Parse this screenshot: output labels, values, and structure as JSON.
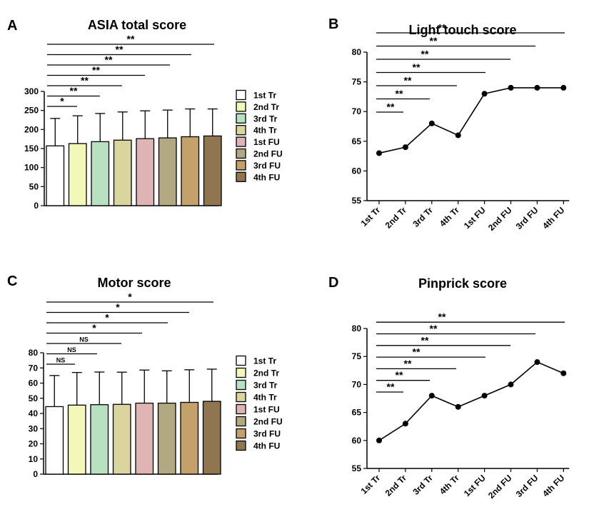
{
  "chart_data": [
    {
      "panel": "A",
      "type": "bar",
      "title": "ASIA total score",
      "categories": [
        "1st Tr",
        "2nd Tr",
        "3rd Tr",
        "4th Tr",
        "1st FU",
        "2nd FU",
        "3rd FU",
        "4th FU"
      ],
      "values": [
        157,
        163,
        168,
        172,
        176,
        178,
        181,
        183
      ],
      "errors": [
        72,
        73,
        74,
        74,
        73,
        73,
        73,
        71
      ],
      "colors": [
        "#ffffff",
        "#f3f7b8",
        "#b7e1c0",
        "#d9d59c",
        "#deb4b4",
        "#b2a882",
        "#c4a06a",
        "#8f7650"
      ],
      "ylim": [
        0,
        300
      ],
      "yticks": [
        0,
        50,
        100,
        150,
        200,
        250,
        300
      ],
      "legend": [
        "1st Tr",
        "2nd Tr",
        "3rd Tr",
        "4th Tr",
        "1st FU",
        "2nd FU",
        "3rd FU",
        "4th FU"
      ],
      "significance": [
        {
          "from": 0,
          "to": 1,
          "label": "*"
        },
        {
          "from": 0,
          "to": 2,
          "label": "**"
        },
        {
          "from": 0,
          "to": 3,
          "label": "**"
        },
        {
          "from": 0,
          "to": 4,
          "label": "**"
        },
        {
          "from": 0,
          "to": 5,
          "label": "**"
        },
        {
          "from": 0,
          "to": 6,
          "label": "**"
        },
        {
          "from": 0,
          "to": 7,
          "label": "**"
        }
      ]
    },
    {
      "panel": "B",
      "type": "line",
      "title": "Light touch score",
      "categories": [
        "1st Tr",
        "2nd Tr",
        "3rd Tr",
        "4th Tr",
        "1st FU",
        "2nd FU",
        "3rd FU",
        "4th FU"
      ],
      "values": [
        63,
        64,
        68,
        66,
        73,
        74,
        74,
        74
      ],
      "ylim": [
        55,
        80
      ],
      "yticks": [
        55,
        60,
        65,
        70,
        75,
        80
      ],
      "significance": [
        {
          "from": 0,
          "to": 1,
          "label": "**"
        },
        {
          "from": 0,
          "to": 2,
          "label": "**"
        },
        {
          "from": 0,
          "to": 3,
          "label": "**"
        },
        {
          "from": 0,
          "to": 4,
          "label": "**"
        },
        {
          "from": 0,
          "to": 5,
          "label": "**"
        },
        {
          "from": 0,
          "to": 6,
          "label": "**"
        },
        {
          "from": 0,
          "to": 7,
          "label": "**"
        }
      ]
    },
    {
      "panel": "C",
      "type": "bar",
      "title": "Motor score",
      "categories": [
        "1st Tr",
        "2nd Tr",
        "3rd Tr",
        "4th Tr",
        "1st FU",
        "2nd FU",
        "3rd FU",
        "4th FU"
      ],
      "values": [
        44.5,
        45.5,
        45.8,
        46,
        46.8,
        46.8,
        47.3,
        48
      ],
      "errors": [
        20.5,
        21.5,
        21.5,
        21.2,
        21.8,
        21.3,
        21.5,
        21.2
      ],
      "colors": [
        "#ffffff",
        "#f3f7b8",
        "#b7e1c0",
        "#d9d59c",
        "#deb4b4",
        "#b2a882",
        "#c4a06a",
        "#8f7650"
      ],
      "ylim": [
        0,
        80
      ],
      "yticks": [
        0,
        10,
        20,
        30,
        40,
        50,
        60,
        70,
        80
      ],
      "legend": [
        "1st Tr",
        "2nd Tr",
        "3rd Tr",
        "4th Tr",
        "1st FU",
        "2nd FU",
        "3rd FU",
        "4th FU"
      ],
      "significance": [
        {
          "from": 0,
          "to": 1,
          "label": "NS"
        },
        {
          "from": 0,
          "to": 2,
          "label": "NS"
        },
        {
          "from": 0,
          "to": 3,
          "label": "NS"
        },
        {
          "from": 0,
          "to": 4,
          "label": "*"
        },
        {
          "from": 0,
          "to": 5,
          "label": "*"
        },
        {
          "from": 0,
          "to": 6,
          "label": "*"
        },
        {
          "from": 0,
          "to": 7,
          "label": "*"
        }
      ]
    },
    {
      "panel": "D",
      "type": "line",
      "title": "Pinprick score",
      "categories": [
        "1st Tr",
        "2nd Tr",
        "3rd Tr",
        "4th Tr",
        "1st FU",
        "2nd FU",
        "3rd FU",
        "4th FU"
      ],
      "values": [
        60,
        63,
        68,
        66,
        68,
        70,
        74,
        72
      ],
      "ylim": [
        55,
        80
      ],
      "yticks": [
        55,
        60,
        65,
        70,
        75,
        80
      ],
      "significance": [
        {
          "from": 0,
          "to": 1,
          "label": "**"
        },
        {
          "from": 0,
          "to": 2,
          "label": "**"
        },
        {
          "from": 0,
          "to": 3,
          "label": "**"
        },
        {
          "from": 0,
          "to": 4,
          "label": "**"
        },
        {
          "from": 0,
          "to": 5,
          "label": "**"
        },
        {
          "from": 0,
          "to": 6,
          "label": "**"
        },
        {
          "from": 0,
          "to": 7,
          "label": "**"
        }
      ]
    }
  ]
}
